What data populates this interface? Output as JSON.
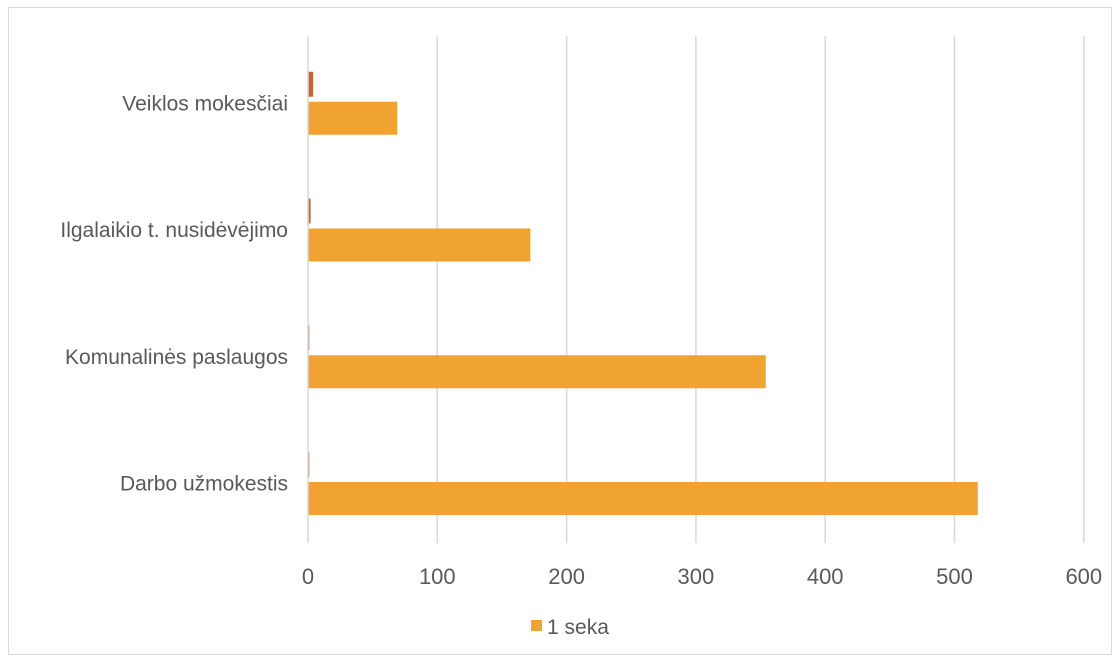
{
  "chart_data": {
    "type": "bar",
    "orientation": "horizontal",
    "categories": [
      "Darbo užmokestis",
      "Komunalinės paslaugos",
      "Ilgalaikio t. nusidėvėjimo",
      "Veiklos mokesčiai"
    ],
    "series": [
      {
        "name": "1 seka",
        "values": [
          518,
          354,
          172,
          69
        ],
        "color": "#f0a330"
      },
      {
        "values": [
          1,
          1,
          2,
          4
        ],
        "color": "#c0683c"
      }
    ],
    "xlim": [
      0,
      600
    ],
    "xticks": [
      "0",
      "100",
      "200",
      "300",
      "400",
      "500",
      "600"
    ],
    "grid": true,
    "legend_position": "bottom"
  }
}
